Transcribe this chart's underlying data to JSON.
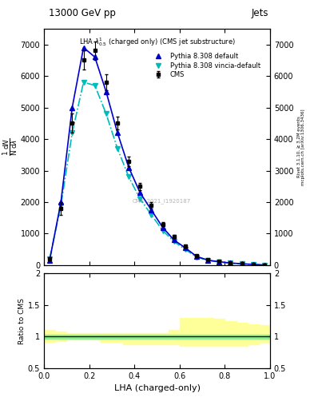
{
  "title_top": "13000 GeV pp",
  "title_right": "Jets",
  "watermark": "CMS_2021_I1920187",
  "xlabel": "LHA (charged-only)",
  "right_label_top": "Rivet 3.1.10, ≥ 3.2M events",
  "right_label_bot": "mcplots.cern.ch [arXiv:1306.3436]",
  "cms_x": [
    0.025,
    0.075,
    0.125,
    0.175,
    0.225,
    0.275,
    0.325,
    0.375,
    0.425,
    0.475,
    0.525,
    0.575,
    0.625,
    0.675,
    0.725,
    0.775,
    0.825,
    0.875,
    0.925,
    0.975
  ],
  "cms_y": [
    200,
    1800,
    4500,
    6500,
    6800,
    5800,
    4500,
    3300,
    2500,
    1900,
    1300,
    900,
    600,
    300,
    180,
    120,
    80,
    50,
    30,
    10
  ],
  "cms_yerr": [
    50,
    200,
    300,
    300,
    300,
    250,
    200,
    150,
    120,
    90,
    70,
    50,
    40,
    30,
    20,
    15,
    10,
    8,
    5,
    3
  ],
  "pythia_default_x": [
    0.025,
    0.075,
    0.125,
    0.175,
    0.225,
    0.275,
    0.325,
    0.375,
    0.425,
    0.475,
    0.525,
    0.575,
    0.625,
    0.675,
    0.725,
    0.775,
    0.825,
    0.875,
    0.925,
    0.975
  ],
  "pythia_default_y": [
    150,
    2000,
    5000,
    6900,
    6600,
    5500,
    4200,
    3100,
    2300,
    1750,
    1200,
    800,
    550,
    280,
    160,
    110,
    70,
    45,
    25,
    8
  ],
  "pythia_vincia_x": [
    0.025,
    0.075,
    0.125,
    0.175,
    0.225,
    0.275,
    0.325,
    0.375,
    0.425,
    0.475,
    0.525,
    0.575,
    0.625,
    0.675,
    0.725,
    0.775,
    0.825,
    0.875,
    0.925,
    0.975
  ],
  "pythia_vincia_y": [
    200,
    1900,
    4200,
    5800,
    5700,
    4800,
    3700,
    2800,
    2100,
    1600,
    1100,
    750,
    500,
    260,
    150,
    100,
    65,
    40,
    22,
    7
  ],
  "band_x": [
    0.0,
    0.05,
    0.1,
    0.15,
    0.2,
    0.25,
    0.3,
    0.35,
    0.4,
    0.45,
    0.5,
    0.55,
    0.6,
    0.65,
    0.7,
    0.75,
    0.8,
    0.85,
    0.9,
    0.95,
    1.0
  ],
  "green_band_lo": [
    0.97,
    0.97,
    0.97,
    0.97,
    0.97,
    0.97,
    0.97,
    0.97,
    0.97,
    0.97,
    0.97,
    0.97,
    0.97,
    0.97,
    0.97,
    0.97,
    0.97,
    0.97,
    0.97,
    0.97,
    0.97
  ],
  "green_band_hi": [
    1.03,
    1.03,
    1.03,
    1.03,
    1.03,
    1.03,
    1.03,
    1.03,
    1.03,
    1.03,
    1.03,
    1.03,
    1.03,
    1.03,
    1.03,
    1.03,
    1.03,
    1.03,
    1.03,
    1.03,
    1.03
  ],
  "yellow_band_lo": [
    0.93,
    0.91,
    0.93,
    0.95,
    0.95,
    0.95,
    0.92,
    0.91,
    0.88,
    0.88,
    0.88,
    0.88,
    0.88,
    0.85,
    0.85,
    0.85,
    0.85,
    0.85,
    0.85,
    0.88,
    0.9
  ],
  "yellow_band_hi": [
    1.05,
    1.1,
    1.08,
    1.06,
    1.05,
    1.05,
    1.05,
    1.05,
    1.05,
    1.05,
    1.05,
    1.05,
    1.1,
    1.3,
    1.3,
    1.3,
    1.28,
    1.25,
    1.22,
    1.2,
    1.18
  ],
  "cms_color": "#000000",
  "pythia_default_color": "#0000CC",
  "pythia_vincia_color": "#00BBBB",
  "green_color": "#90EE90",
  "yellow_color": "#FFFF99",
  "ylim_main": [
    0,
    7500
  ],
  "ylim_ratio": [
    0.5,
    2.0
  ],
  "xlim": [
    0.0,
    1.0
  ],
  "yticks_main": [
    0,
    1000,
    2000,
    3000,
    4000,
    5000,
    6000,
    7000
  ],
  "ytick_labels_main": [
    "0",
    "1000",
    "2000",
    "3000",
    "4000",
    "5000",
    "6000",
    "7000"
  ],
  "yticks_ratio": [
    0.5,
    1.0,
    1.5,
    2.0
  ],
  "ytick_labels_ratio": [
    "0.5",
    "1",
    "1.5",
    "2"
  ]
}
